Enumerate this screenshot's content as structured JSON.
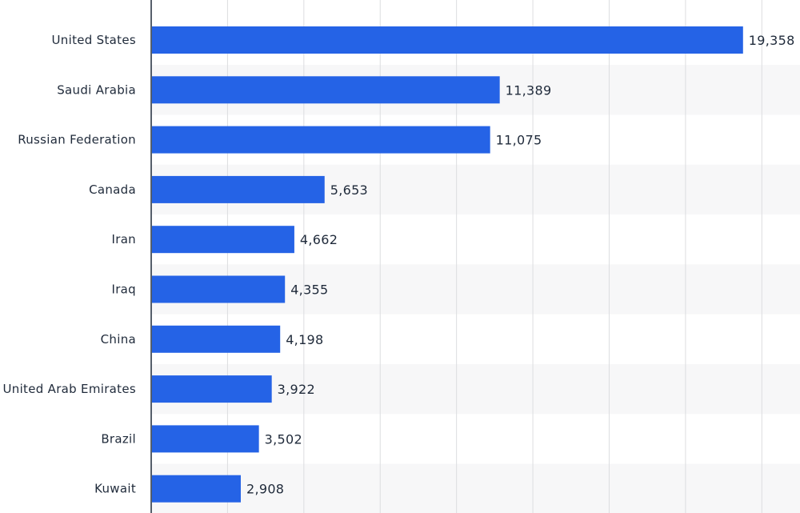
{
  "chart_data": {
    "type": "bar",
    "orientation": "horizontal",
    "categories": [
      "United States",
      "Saudi Arabia",
      "Russian Federation",
      "Canada",
      "Iran",
      "Iraq",
      "China",
      "United Arab Emirates",
      "Brazil",
      "Kuwait"
    ],
    "value_labels": [
      "19,358",
      "11,389",
      "11,075",
      "5,653",
      "4,662",
      "4,355",
      "4,198",
      "3,922",
      "3,502",
      "2,908"
    ],
    "values": [
      19358,
      11389,
      11075,
      5653,
      4662,
      4355,
      4198,
      3922,
      3502,
      2908
    ],
    "xlim": [
      0,
      21250
    ],
    "grid": true,
    "bar_color": "#2563e6",
    "band_color": "#f7f7f8"
  }
}
